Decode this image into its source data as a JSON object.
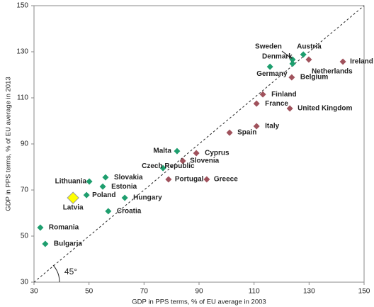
{
  "chart_data": {
    "type": "scatter",
    "xlabel": "GDP in PPS terms, % of EU average in 2003",
    "ylabel": "GDP in PPS terms, % of EU average in 2013",
    "annotation": "45°",
    "xlim": [
      30,
      150
    ],
    "ylim": [
      30,
      150
    ],
    "xticks": [
      30,
      50,
      70,
      90,
      110,
      130,
      150
    ],
    "yticks": [
      30,
      50,
      70,
      90,
      110,
      130,
      150
    ],
    "points": [
      {
        "label": "Austria",
        "x": 127.9,
        "y": 128.8,
        "color": "#1e9e6e"
      },
      {
        "label": "Sweden",
        "x": 124.0,
        "y": 126.6,
        "color": "#1e9e6e"
      },
      {
        "label": "Denmark",
        "x": 124.0,
        "y": 124.8,
        "color": "#1e9e6e"
      },
      {
        "label": "Netherlands",
        "x": 129.9,
        "y": 126.6,
        "color": "#a0525c"
      },
      {
        "label": "Ireland",
        "x": 142.3,
        "y": 125.7,
        "color": "#a0525c"
      },
      {
        "label": "Germany",
        "x": 115.8,
        "y": 123.5,
        "color": "#1e9e6e"
      },
      {
        "label": "Belgium",
        "x": 123.7,
        "y": 118.9,
        "color": "#a0525c"
      },
      {
        "label": "Finland",
        "x": 113.2,
        "y": 111.5,
        "color": "#a0525c"
      },
      {
        "label": "France",
        "x": 110.9,
        "y": 107.5,
        "color": "#a0525c"
      },
      {
        "label": "United Kingdom",
        "x": 123.0,
        "y": 105.4,
        "color": "#a0525c"
      },
      {
        "label": "Italy",
        "x": 110.9,
        "y": 97.7,
        "color": "#a0525c"
      },
      {
        "label": "Spain",
        "x": 101.1,
        "y": 94.9,
        "color": "#a0525c"
      },
      {
        "label": "Cyprus",
        "x": 89.0,
        "y": 86.0,
        "color": "#a0525c"
      },
      {
        "label": "Malta",
        "x": 82.0,
        "y": 86.9,
        "color": "#1e9e6e"
      },
      {
        "label": "Slovenia",
        "x": 84.1,
        "y": 82.6,
        "color": "#a0525c"
      },
      {
        "label": "Czech Republic",
        "x": 76.9,
        "y": 79.5,
        "color": "#1e9e6e"
      },
      {
        "label": "Portugal",
        "x": 78.9,
        "y": 74.6,
        "color": "#a0525c"
      },
      {
        "label": "Greece",
        "x": 92.8,
        "y": 74.6,
        "color": "#a0525c"
      },
      {
        "label": "Slovakia",
        "x": 56.0,
        "y": 75.5,
        "color": "#1e9e6e"
      },
      {
        "label": "Lithuania",
        "x": 50.1,
        "y": 73.7,
        "color": "#1e9e6e"
      },
      {
        "label": "Estonia",
        "x": 55.0,
        "y": 71.5,
        "color": "#1e9e6e"
      },
      {
        "label": "Poland",
        "x": 49.1,
        "y": 67.8,
        "color": "#1e9e6e"
      },
      {
        "label": "Latvia",
        "x": 44.2,
        "y": 66.6,
        "color": "#ffff00"
      },
      {
        "label": "Hungary",
        "x": 63.0,
        "y": 66.6,
        "color": "#1e9e6e"
      },
      {
        "label": "Croatia",
        "x": 57.0,
        "y": 60.8,
        "color": "#1e9e6e"
      },
      {
        "label": "Romania",
        "x": 32.3,
        "y": 53.7,
        "color": "#1e9e6e"
      },
      {
        "label": "Bulgaria",
        "x": 34.1,
        "y": 46.6,
        "color": "#1e9e6e"
      }
    ]
  }
}
